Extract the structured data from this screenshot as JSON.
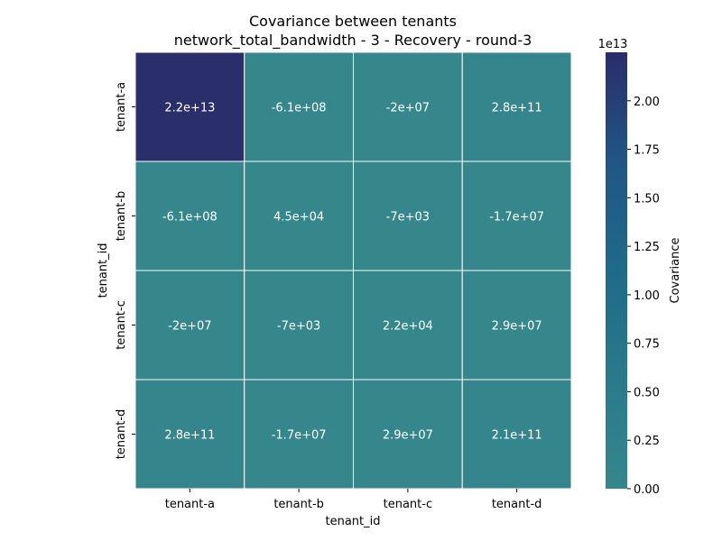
{
  "chart_data": {
    "type": "heatmap",
    "title_line1": "Covariance between tenants",
    "title_line2": "network_total_bandwidth - 3 - Recovery - round-3",
    "xlabel": "tenant_id",
    "ylabel": "tenant_id",
    "x_categories": [
      "tenant-a",
      "tenant-b",
      "tenant-c",
      "tenant-d"
    ],
    "y_categories": [
      "tenant-a",
      "tenant-b",
      "tenant-c",
      "tenant-d"
    ],
    "values": [
      [
        22000000000000.0,
        -610000000.0,
        -20000000.0,
        280000000000.0
      ],
      [
        -610000000.0,
        45000.0,
        -7000.0,
        -17000000.0
      ],
      [
        -20000000.0,
        -7000.0,
        22000.0,
        29000000.0
      ],
      [
        280000000000.0,
        -17000000.0,
        29000000.0,
        210000000000.0
      ]
    ],
    "cell_labels": [
      [
        "2.2e+13",
        "-6.1e+08",
        "-2e+07",
        "2.8e+11"
      ],
      [
        "-6.1e+08",
        "4.5e+04",
        "-7e+03",
        "-1.7e+07"
      ],
      [
        "-2e+07",
        "-7e+03",
        "2.2e+04",
        "2.9e+07"
      ],
      [
        "2.8e+11",
        "-1.7e+07",
        "2.9e+07",
        "2.1e+11"
      ]
    ],
    "colorbar": {
      "label": "Covariance",
      "exponent_label": "1e13",
      "range": [
        0,
        22500000000000.0
      ],
      "ticks": [
        0,
        0.25,
        0.5,
        0.75,
        1.0,
        1.25,
        1.5,
        1.75,
        2.0
      ],
      "tick_labels": [
        "0.00",
        "0.25",
        "0.50",
        "0.75",
        "1.00",
        "1.25",
        "1.50",
        "1.75",
        "2.00"
      ],
      "tick_scale": 10000000000000.0,
      "colormap_low": "#35878c",
      "colormap_high": "#2a2d6a"
    },
    "grid": true
  }
}
